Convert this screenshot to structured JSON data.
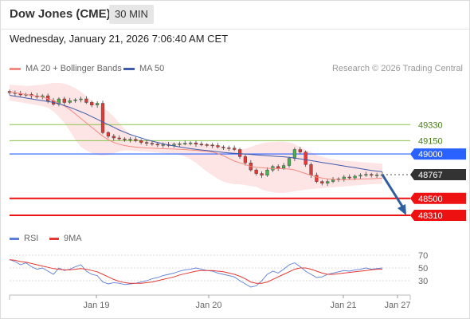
{
  "header": {
    "title": "Dow Jones (CME)",
    "timeframe": "30 MIN",
    "datetime": "Wednesday, January 21, 2026 7:06:40 AM CET"
  },
  "legend": {
    "ma20": "MA 20 + Bollinger Bands",
    "ma50": "MA 50",
    "credit": "Research © 2026 Trading Central",
    "rsi": "RSI",
    "ma9": "9MA"
  },
  "colors": {
    "candle_up": "#4caf50",
    "candle_down": "#e53935",
    "ma20": "#f28b82",
    "bollinger_fill": "#fde0e0",
    "ma50": "#3f5ba9",
    "support": "#ee1111",
    "pivot": "#2962ff",
    "resistance": "#8bc34a",
    "current": "#333333",
    "arrow": "#2f5f9e",
    "rsi": "#5b7fd6",
    "rsi_ma": "#e53935"
  },
  "chart_data": [
    {
      "type": "line",
      "name": "price",
      "y_ticks": [
        49330,
        49150,
        49000,
        48767,
        48500,
        48310
      ],
      "ylim": [
        48220,
        49880
      ],
      "x_ticks": [
        "Jan 19",
        "Jan 20",
        "Jan 21",
        "Jan 27"
      ],
      "levels": [
        {
          "label": "49330",
          "value": 49330,
          "role": "resistance"
        },
        {
          "label": "49150",
          "value": 49150,
          "role": "resistance"
        },
        {
          "label": "49000",
          "value": 49000,
          "role": "pivot"
        },
        {
          "label": "48767",
          "value": 48767,
          "role": "current"
        },
        {
          "label": "48500",
          "value": 48500,
          "role": "support"
        },
        {
          "label": "48310",
          "value": 48310,
          "role": "support"
        }
      ],
      "close": [
        49690,
        49680,
        49665,
        49670,
        49655,
        49640,
        49655,
        49600,
        49560,
        49620,
        49580,
        49600,
        49610,
        49620,
        49580,
        49550,
        49570,
        49240,
        49200,
        49180,
        49170,
        49160,
        49165,
        49150,
        49130,
        49120,
        49110,
        49100,
        49105,
        49095,
        49110,
        49115,
        49120,
        49125,
        49110,
        49105,
        49100,
        49095,
        49080,
        49070,
        49065,
        49050,
        48970,
        48900,
        48820,
        48780,
        48760,
        48820,
        48860,
        48840,
        48870,
        48950,
        49050,
        49020,
        48880,
        48760,
        48690,
        48670,
        48690,
        48710,
        48720,
        48740,
        48730,
        48750,
        48760,
        48770,
        48760,
        48765,
        48767
      ],
      "ma20": [
        49700,
        49690,
        49680,
        49670,
        49660,
        49650,
        49640,
        49620,
        49600,
        49570,
        49540,
        49500,
        49450,
        49400,
        49350,
        49300,
        49250,
        49200,
        49160,
        49130,
        49110,
        49095,
        49085,
        49078,
        49072,
        49068,
        49065,
        49062,
        49060,
        49058,
        49055,
        49052,
        49050,
        49045,
        49040,
        49035,
        49030,
        49020,
        49005,
        48980,
        48950,
        48920,
        48900,
        48880,
        48860,
        48850,
        48845,
        48840,
        48835,
        48835,
        48835,
        48830,
        48820,
        48800,
        48780,
        48760,
        48740,
        48730,
        48720,
        48715,
        48712,
        48710,
        48712,
        48715,
        48718,
        48720,
        48722,
        48725,
        48728
      ],
      "ma50": [
        49660,
        49650,
        49640,
        49630,
        49620,
        49610,
        49600,
        49590,
        49580,
        49565,
        49545,
        49525,
        49500,
        49475,
        49450,
        49420,
        49390,
        49360,
        49330,
        49300,
        49270,
        49245,
        49220,
        49200,
        49180,
        49160,
        49145,
        49130,
        49115,
        49100,
        49090,
        49080,
        49070,
        49060,
        49052,
        49045,
        49038,
        49032,
        49025,
        49018,
        49012,
        49008,
        49004,
        49000,
        48995,
        48990,
        48985,
        48980,
        48976,
        48972,
        48968,
        48962,
        48955,
        48945,
        48935,
        48925,
        48915,
        48905,
        48895,
        48885,
        48875,
        48865,
        48855,
        48845,
        48835,
        48825,
        48815,
        48808,
        48800
      ],
      "bb_upper": [
        49780,
        49775,
        49770,
        49765,
        49770,
        49775,
        49780,
        49790,
        49800,
        49800,
        49790,
        49770,
        49740,
        49700,
        49650,
        49600,
        49560,
        49520,
        49480,
        49420,
        49350,
        49280,
        49220,
        49180,
        49160,
        49150,
        49145,
        49140,
        49140,
        49138,
        49135,
        49130,
        49130,
        49128,
        49125,
        49120,
        49115,
        49110,
        49100,
        49080,
        49060,
        49050,
        49050,
        49060,
        49080,
        49100,
        49120,
        49130,
        49135,
        49140,
        49140,
        49130,
        49110,
        49080,
        49050,
        49020,
        48990,
        48970,
        48950,
        48940,
        48930,
        48925,
        48920,
        48915,
        48910,
        48905,
        48900,
        48895,
        48890
      ],
      "bb_lower": [
        49600,
        49590,
        49580,
        49570,
        49560,
        49550,
        49540,
        49520,
        49480,
        49420,
        49350,
        49260,
        49160,
        49080,
        49040,
        49010,
        48990,
        48980,
        48990,
        49010,
        49030,
        49040,
        49040,
        49035,
        49030,
        49025,
        49020,
        49015,
        49010,
        49005,
        49000,
        48990,
        48970,
        48940,
        48900,
        48850,
        48800,
        48760,
        48720,
        48690,
        48670,
        48660,
        48660,
        48650,
        48640,
        48630,
        48600,
        48580,
        48570,
        48560,
        48560,
        48570,
        48580,
        48590,
        48600,
        48605,
        48610,
        48615,
        48620,
        48625,
        48630,
        48635,
        48640,
        48645,
        48650,
        48655,
        48660,
        48662,
        48665
      ],
      "forecast": [
        48767,
        48310
      ]
    },
    {
      "type": "line",
      "name": "rsi",
      "y_ticks": [
        70,
        50,
        30
      ],
      "ylim": [
        10,
        80
      ],
      "rsi": [
        63,
        60,
        55,
        58,
        52,
        48,
        50,
        45,
        40,
        50,
        46,
        48,
        52,
        55,
        45,
        40,
        38,
        28,
        25,
        27,
        26,
        24,
        25,
        26,
        28,
        30,
        33,
        35,
        38,
        40,
        42,
        45,
        47,
        48,
        50,
        48,
        46,
        45,
        42,
        40,
        38,
        36,
        30,
        25,
        20,
        22,
        30,
        40,
        45,
        42,
        48,
        55,
        58,
        52,
        45,
        40,
        35,
        36,
        40,
        42,
        44,
        46,
        45,
        47,
        48,
        50,
        48,
        49,
        50
      ],
      "rsi_ma": [
        63,
        62,
        60,
        59,
        57,
        55,
        53,
        51,
        49,
        48,
        47,
        47,
        48,
        49,
        48,
        46,
        44,
        40,
        36,
        32,
        29,
        27,
        26,
        26,
        26,
        27,
        28,
        30,
        32,
        34,
        36,
        39,
        41,
        43,
        45,
        46,
        46,
        46,
        45,
        44,
        42,
        40,
        37,
        33,
        28,
        26,
        26,
        28,
        32,
        36,
        40,
        44,
        48,
        50,
        50,
        48,
        45,
        42,
        40,
        40,
        41,
        42,
        43,
        44,
        45,
        46,
        47,
        48,
        48
      ],
      "x_ticks": [
        "Jan 19",
        "Jan 20",
        "Jan 21",
        "Jan 27"
      ]
    }
  ]
}
